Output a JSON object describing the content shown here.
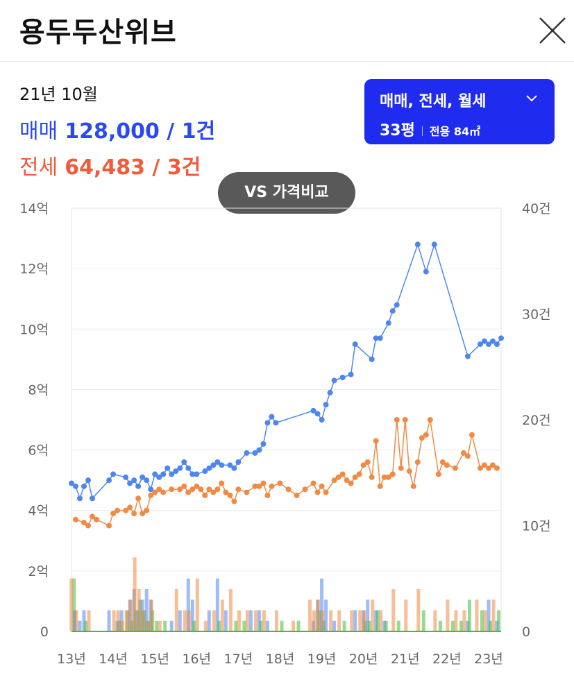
{
  "header": {
    "title": "용두두산위브"
  },
  "info": {
    "date": "21년 10월",
    "sale_label": "매매",
    "sale_value": "128,000 / 1건",
    "jeonse_label": "전세",
    "jeonse_value": "64,483 / 3건"
  },
  "filter": {
    "types": "매매, 전세, 월세",
    "pyeong": "33평",
    "area": "전용 84㎡"
  },
  "vs_button": "VS 가격비교",
  "colors": {
    "sale": "#4e86f0",
    "jeonse": "#f08a44",
    "monthly": "#3cbf3c",
    "accent": "#1f2cf0"
  },
  "chart_data": {
    "type": "line",
    "title": "",
    "x_ticks": [
      "13년",
      "14년",
      "15년",
      "16년",
      "17년",
      "18년",
      "19년",
      "20년",
      "21년",
      "22년",
      "23년"
    ],
    "y_left_ticks": [
      "0",
      "2억",
      "4억",
      "6억",
      "8억",
      "10억",
      "12억",
      "14억"
    ],
    "y_right_ticks": [
      "0",
      "10건",
      "20건",
      "30건",
      "40건"
    ],
    "y_left_range": [
      0,
      14
    ],
    "y_right_range": [
      0,
      40
    ],
    "series": [
      {
        "name": "매매",
        "axis": "left",
        "points": [
          [
            2013.0,
            4.9
          ],
          [
            2013.1,
            4.8
          ],
          [
            2013.2,
            4.4
          ],
          [
            2013.3,
            4.8
          ],
          [
            2013.4,
            5.0
          ],
          [
            2013.5,
            4.4
          ],
          [
            2013.9,
            5.0
          ],
          [
            2014.0,
            5.2
          ],
          [
            2014.3,
            5.1
          ],
          [
            2014.4,
            4.9
          ],
          [
            2014.5,
            5.0
          ],
          [
            2014.6,
            4.8
          ],
          [
            2014.7,
            5.1
          ],
          [
            2014.8,
            5.0
          ],
          [
            2014.9,
            4.7
          ],
          [
            2015.0,
            5.2
          ],
          [
            2015.1,
            5.1
          ],
          [
            2015.2,
            5.2
          ],
          [
            2015.3,
            5.4
          ],
          [
            2015.4,
            5.2
          ],
          [
            2015.5,
            5.3
          ],
          [
            2015.6,
            5.4
          ],
          [
            2015.7,
            5.6
          ],
          [
            2015.8,
            5.4
          ],
          [
            2015.9,
            5.2
          ],
          [
            2016.0,
            5.2
          ],
          [
            2016.2,
            5.3
          ],
          [
            2016.3,
            5.4
          ],
          [
            2016.4,
            5.5
          ],
          [
            2016.5,
            5.6
          ],
          [
            2016.6,
            5.5
          ],
          [
            2016.8,
            5.5
          ],
          [
            2016.9,
            5.4
          ],
          [
            2017.0,
            5.6
          ],
          [
            2017.2,
            5.9
          ],
          [
            2017.4,
            5.9
          ],
          [
            2017.5,
            6.0
          ],
          [
            2017.6,
            6.2
          ],
          [
            2017.7,
            6.9
          ],
          [
            2017.8,
            7.1
          ],
          [
            2017.9,
            6.9
          ],
          [
            2018.8,
            7.3
          ],
          [
            2018.9,
            7.2
          ],
          [
            2019.0,
            7.0
          ],
          [
            2019.1,
            7.5
          ],
          [
            2019.2,
            7.9
          ],
          [
            2019.3,
            8.3
          ],
          [
            2019.5,
            8.4
          ],
          [
            2019.7,
            8.5
          ],
          [
            2019.8,
            9.5
          ],
          [
            2020.2,
            9.0
          ],
          [
            2020.3,
            9.7
          ],
          [
            2020.4,
            9.7
          ],
          [
            2020.6,
            10.2
          ],
          [
            2020.7,
            10.6
          ],
          [
            2020.8,
            10.8
          ],
          [
            2021.3,
            12.8
          ],
          [
            2021.5,
            11.9
          ],
          [
            2021.7,
            12.8
          ],
          [
            2022.5,
            9.1
          ],
          [
            2022.8,
            9.5
          ],
          [
            2022.9,
            9.6
          ],
          [
            2023.0,
            9.5
          ],
          [
            2023.1,
            9.6
          ],
          [
            2023.2,
            9.5
          ],
          [
            2023.3,
            9.7
          ]
        ]
      },
      {
        "name": "전세",
        "axis": "left",
        "points": [
          [
            2013.1,
            3.7
          ],
          [
            2013.3,
            3.6
          ],
          [
            2013.4,
            3.5
          ],
          [
            2013.5,
            3.8
          ],
          [
            2013.6,
            3.7
          ],
          [
            2013.9,
            3.5
          ],
          [
            2014.0,
            3.9
          ],
          [
            2014.1,
            4.0
          ],
          [
            2014.3,
            4.0
          ],
          [
            2014.4,
            4.1
          ],
          [
            2014.5,
            3.9
          ],
          [
            2014.6,
            4.4
          ],
          [
            2014.7,
            3.9
          ],
          [
            2014.8,
            4.0
          ],
          [
            2014.9,
            4.5
          ],
          [
            2015.0,
            4.6
          ],
          [
            2015.1,
            4.7
          ],
          [
            2015.2,
            4.6
          ],
          [
            2015.4,
            4.7
          ],
          [
            2015.6,
            4.7
          ],
          [
            2015.7,
            4.8
          ],
          [
            2015.8,
            4.6
          ],
          [
            2015.9,
            4.7
          ],
          [
            2016.0,
            4.8
          ],
          [
            2016.1,
            4.7
          ],
          [
            2016.2,
            4.5
          ],
          [
            2016.3,
            4.7
          ],
          [
            2016.4,
            4.6
          ],
          [
            2016.5,
            4.7
          ],
          [
            2016.6,
            4.9
          ],
          [
            2016.7,
            4.6
          ],
          [
            2016.8,
            4.5
          ],
          [
            2016.9,
            4.3
          ],
          [
            2017.0,
            4.7
          ],
          [
            2017.2,
            4.6
          ],
          [
            2017.4,
            4.8
          ],
          [
            2017.5,
            4.8
          ],
          [
            2017.6,
            4.9
          ],
          [
            2017.7,
            4.5
          ],
          [
            2017.8,
            4.8
          ],
          [
            2018.0,
            4.9
          ],
          [
            2018.2,
            4.7
          ],
          [
            2018.4,
            4.5
          ],
          [
            2018.6,
            4.7
          ],
          [
            2018.8,
            4.9
          ],
          [
            2018.9,
            4.6
          ],
          [
            2019.0,
            4.8
          ],
          [
            2019.1,
            4.6
          ],
          [
            2019.3,
            5.0
          ],
          [
            2019.4,
            5.1
          ],
          [
            2019.5,
            5.2
          ],
          [
            2019.6,
            5.0
          ],
          [
            2019.7,
            4.9
          ],
          [
            2019.8,
            5.1
          ],
          [
            2019.9,
            5.2
          ],
          [
            2020.0,
            5.5
          ],
          [
            2020.1,
            5.6
          ],
          [
            2020.2,
            5.1
          ],
          [
            2020.3,
            6.3
          ],
          [
            2020.4,
            4.8
          ],
          [
            2020.5,
            5.1
          ],
          [
            2020.6,
            5.1
          ],
          [
            2020.7,
            5.2
          ],
          [
            2020.8,
            7.0
          ],
          [
            2020.9,
            5.4
          ],
          [
            2021.0,
            7.0
          ],
          [
            2021.1,
            5.3
          ],
          [
            2021.2,
            4.8
          ],
          [
            2021.3,
            5.6
          ],
          [
            2021.4,
            6.4
          ],
          [
            2021.5,
            6.5
          ],
          [
            2021.6,
            7.0
          ],
          [
            2021.8,
            5.2
          ],
          [
            2021.9,
            5.6
          ],
          [
            2022.0,
            5.5
          ],
          [
            2022.2,
            5.4
          ],
          [
            2022.4,
            5.9
          ],
          [
            2022.5,
            5.8
          ],
          [
            2022.6,
            6.5
          ],
          [
            2022.8,
            5.4
          ],
          [
            2022.9,
            5.5
          ],
          [
            2023.0,
            5.4
          ],
          [
            2023.1,
            5.5
          ],
          [
            2023.2,
            5.4
          ]
        ]
      }
    ],
    "volume_bars": [
      {
        "x": 2013.02,
        "sale": 0,
        "jeonse": 0,
        "monthly": 5
      },
      {
        "x": 2013.08,
        "sale": 2,
        "jeonse": 5,
        "monthly": 0
      },
      {
        "x": 2013.2,
        "sale": 1,
        "jeonse": 2,
        "monthly": 0
      },
      {
        "x": 2013.3,
        "sale": 2,
        "jeonse": 0,
        "monthly": 1
      },
      {
        "x": 2013.5,
        "sale": 0,
        "jeonse": 2,
        "monthly": 0
      },
      {
        "x": 2013.9,
        "sale": 2,
        "jeonse": 0,
        "monthly": 0
      },
      {
        "x": 2014.1,
        "sale": 1,
        "jeonse": 2,
        "monthly": 1
      },
      {
        "x": 2014.2,
        "sale": 2,
        "jeonse": 2,
        "monthly": 0
      },
      {
        "x": 2014.3,
        "sale": 0,
        "jeonse": 1,
        "monthly": 2
      },
      {
        "x": 2014.4,
        "sale": 3,
        "jeonse": 2,
        "monthly": 1
      },
      {
        "x": 2014.5,
        "sale": 4,
        "jeonse": 3,
        "monthly": 2
      },
      {
        "x": 2014.6,
        "sale": 2,
        "jeonse": 7,
        "monthly": 3
      },
      {
        "x": 2014.7,
        "sale": 3,
        "jeonse": 4,
        "monthly": 2
      },
      {
        "x": 2014.8,
        "sale": 4,
        "jeonse": 2,
        "monthly": 1
      },
      {
        "x": 2014.9,
        "sale": 3,
        "jeonse": 1,
        "monthly": 2
      },
      {
        "x": 2015.0,
        "sale": 0,
        "jeonse": 3,
        "monthly": 1
      },
      {
        "x": 2015.2,
        "sale": 0,
        "jeonse": 1,
        "monthly": 1
      },
      {
        "x": 2015.4,
        "sale": 1,
        "jeonse": 0,
        "monthly": 0
      },
      {
        "x": 2015.6,
        "sale": 2,
        "jeonse": 4,
        "monthly": 0
      },
      {
        "x": 2015.8,
        "sale": 5,
        "jeonse": 2,
        "monthly": 0
      },
      {
        "x": 2015.9,
        "sale": 3,
        "jeonse": 2,
        "monthly": 1
      },
      {
        "x": 2016.1,
        "sale": 0,
        "jeonse": 5,
        "monthly": 0
      },
      {
        "x": 2016.3,
        "sale": 2,
        "jeonse": 1,
        "monthly": 0
      },
      {
        "x": 2016.5,
        "sale": 5,
        "jeonse": 2,
        "monthly": 1
      },
      {
        "x": 2016.7,
        "sale": 2,
        "jeonse": 3,
        "monthly": 0
      },
      {
        "x": 2016.9,
        "sale": 0,
        "jeonse": 4,
        "monthly": 1
      },
      {
        "x": 2017.1,
        "sale": 0,
        "jeonse": 2,
        "monthly": 1
      },
      {
        "x": 2017.3,
        "sale": 2,
        "jeonse": 2,
        "monthly": 0
      },
      {
        "x": 2017.5,
        "sale": 2,
        "jeonse": 2,
        "monthly": 1
      },
      {
        "x": 2017.7,
        "sale": 1,
        "jeonse": 2,
        "monthly": 0
      },
      {
        "x": 2018.0,
        "sale": 0,
        "jeonse": 2,
        "monthly": 1
      },
      {
        "x": 2018.4,
        "sale": 0,
        "jeonse": 1,
        "monthly": 1
      },
      {
        "x": 2018.8,
        "sale": 1,
        "jeonse": 3,
        "monthly": 0
      },
      {
        "x": 2018.9,
        "sale": 3,
        "jeonse": 2,
        "monthly": 2
      },
      {
        "x": 2019.0,
        "sale": 5,
        "jeonse": 3,
        "monthly": 1
      },
      {
        "x": 2019.1,
        "sale": 3,
        "jeonse": 2,
        "monthly": 0
      },
      {
        "x": 2019.3,
        "sale": 1,
        "jeonse": 2,
        "monthly": 0
      },
      {
        "x": 2019.5,
        "sale": 0,
        "jeonse": 2,
        "monthly": 1
      },
      {
        "x": 2019.8,
        "sale": 2,
        "jeonse": 2,
        "monthly": 0
      },
      {
        "x": 2020.0,
        "sale": 2,
        "jeonse": 2,
        "monthly": 1
      },
      {
        "x": 2020.1,
        "sale": 3,
        "jeonse": 2,
        "monthly": 1
      },
      {
        "x": 2020.3,
        "sale": 2,
        "jeonse": 3,
        "monthly": 2
      },
      {
        "x": 2020.5,
        "sale": 1,
        "jeonse": 2,
        "monthly": 1
      },
      {
        "x": 2020.8,
        "sale": 0,
        "jeonse": 4,
        "monthly": 1
      },
      {
        "x": 2021.1,
        "sale": 0,
        "jeonse": 3,
        "monthly": 0
      },
      {
        "x": 2021.4,
        "sale": 0,
        "jeonse": 4,
        "monthly": 2
      },
      {
        "x": 2021.8,
        "sale": 0,
        "jeonse": 2,
        "monthly": 1
      },
      {
        "x": 2022.1,
        "sale": 0,
        "jeonse": 3,
        "monthly": 1
      },
      {
        "x": 2022.3,
        "sale": 0,
        "jeonse": 2,
        "monthly": 1
      },
      {
        "x": 2022.5,
        "sale": 1,
        "jeonse": 2,
        "monthly": 3
      },
      {
        "x": 2022.8,
        "sale": 0,
        "jeonse": 3,
        "monthly": 2
      },
      {
        "x": 2023.0,
        "sale": 3,
        "jeonse": 2,
        "monthly": 1
      },
      {
        "x": 2023.2,
        "sale": 1,
        "jeonse": 3,
        "monthly": 2
      }
    ],
    "grid": true
  }
}
